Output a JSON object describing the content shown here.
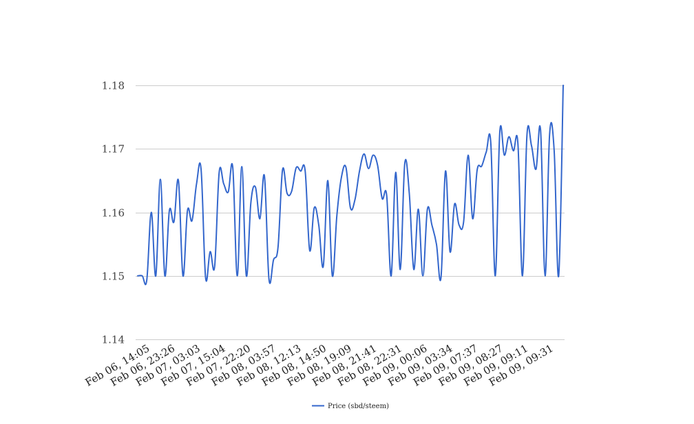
{
  "chart_data": {
    "type": "line",
    "title": "",
    "xlabel": "",
    "ylabel": "",
    "ylim": [
      1.14,
      1.18
    ],
    "y_ticks": [
      1.14,
      1.15,
      1.16,
      1.17,
      1.18
    ],
    "y_tick_labels": [
      "1.14",
      "1.15",
      "1.16",
      "1.17",
      "1.18"
    ],
    "x_tick_labels": [
      "Feb 06, 14:05",
      "Feb 06, 23:26",
      "Feb 07, 03:03",
      "Feb 07, 15:04",
      "Feb 07, 22:20",
      "Feb 08, 03:57",
      "Feb 08, 12:13",
      "Feb 08, 14:50",
      "Feb 08, 19:09",
      "Feb 08, 21:41",
      "Feb 08, 22:31",
      "Feb 09, 00:06",
      "Feb 09, 03:34",
      "Feb 09, 07:37",
      "Feb 09, 08:27",
      "Feb 09, 09:11",
      "Feb 09, 09:31"
    ],
    "grid": true,
    "legend_position": "bottom",
    "color": "#3366cc",
    "series": [
      {
        "name": "Price (sbd/steem)",
        "values": [
          1.15,
          1.15,
          1.1493,
          1.16,
          1.15,
          1.1652,
          1.15,
          1.1603,
          1.1585,
          1.165,
          1.15,
          1.1603,
          1.1587,
          1.1645,
          1.1668,
          1.1497,
          1.1538,
          1.1515,
          1.1663,
          1.1645,
          1.1632,
          1.1671,
          1.15,
          1.1672,
          1.15,
          1.1615,
          1.164,
          1.159,
          1.1657,
          1.1495,
          1.1525,
          1.1545,
          1.1667,
          1.163,
          1.1633,
          1.167,
          1.1665,
          1.1665,
          1.154,
          1.1607,
          1.158,
          1.1515,
          1.165,
          1.15,
          1.1595,
          1.1655,
          1.1671,
          1.1607,
          1.162,
          1.1665,
          1.1692,
          1.1669,
          1.169,
          1.1674,
          1.1622,
          1.1627,
          1.15,
          1.1663,
          1.151,
          1.1677,
          1.163,
          1.151,
          1.1605,
          1.15,
          1.1605,
          1.158,
          1.155,
          1.1497,
          1.1665,
          1.1538,
          1.1613,
          1.158,
          1.1585,
          1.169,
          1.159,
          1.1667,
          1.1673,
          1.1695,
          1.171,
          1.15,
          1.1727,
          1.169,
          1.1719,
          1.1697,
          1.1708,
          1.15,
          1.1722,
          1.1705,
          1.1668,
          1.173,
          1.15,
          1.1723,
          1.1698,
          1.15,
          1.18
        ]
      }
    ]
  }
}
